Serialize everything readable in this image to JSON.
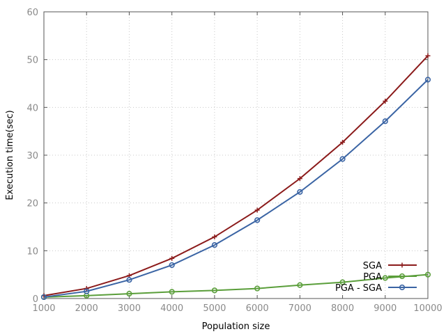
{
  "chart_data": {
    "type": "line",
    "xlabel": "Population size",
    "ylabel": "Execution time(sec)",
    "xlim": [
      1000,
      10000
    ],
    "ylim": [
      0,
      60
    ],
    "x_ticks": [
      1000,
      2000,
      3000,
      4000,
      5000,
      6000,
      7000,
      8000,
      9000,
      10000
    ],
    "y_ticks": [
      0,
      10,
      20,
      30,
      40,
      50,
      60
    ],
    "grid": true,
    "legend_position": "bottom-right",
    "x": [
      1000,
      2000,
      3000,
      4000,
      5000,
      6000,
      7000,
      8000,
      9000,
      10000
    ],
    "series": [
      {
        "name": "SGA",
        "color": "#8b1a1a",
        "marker": "plus",
        "values": [
          0.6,
          2.1,
          4.8,
          8.4,
          12.9,
          18.5,
          25.1,
          32.7,
          41.3,
          50.8
        ]
      },
      {
        "name": "PGA",
        "color": "#5a9e3a",
        "marker": "circle",
        "values": [
          0.3,
          0.6,
          1.0,
          1.4,
          1.7,
          2.1,
          2.8,
          3.4,
          4.3,
          5.0
        ]
      },
      {
        "name": "PGA - SGA",
        "color": "#3a64a4",
        "marker": "circle",
        "values": [
          0.3,
          1.5,
          3.9,
          7.0,
          11.2,
          16.4,
          22.3,
          29.2,
          37.1,
          45.8
        ]
      }
    ]
  }
}
